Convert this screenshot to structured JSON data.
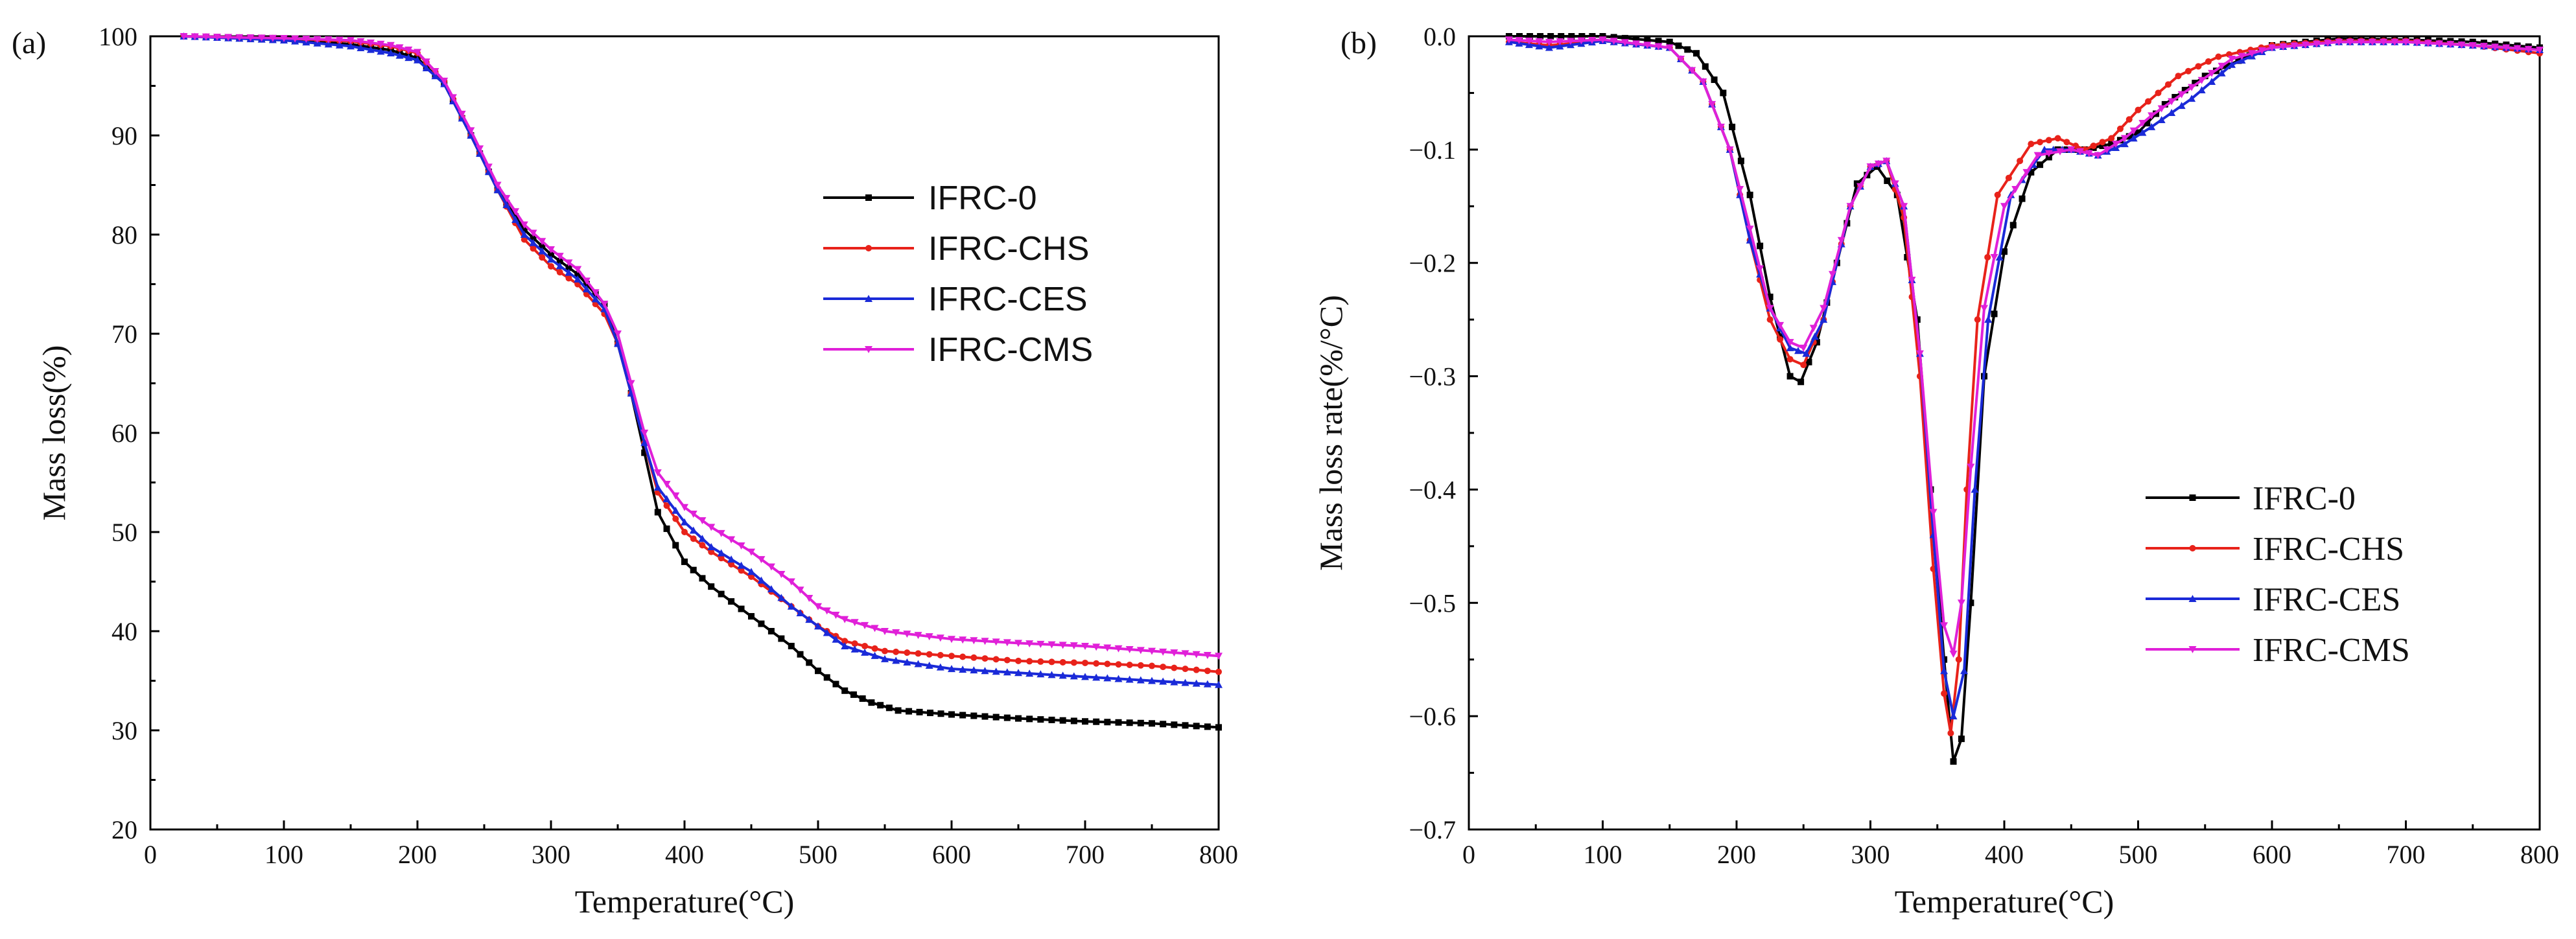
{
  "chart_data": [
    {
      "type": "line",
      "panel_tag": "(a)",
      "title": "",
      "xlabel": "Temperature(°C)",
      "ylabel": "Mass loss(%)",
      "xlim": [
        0,
        800
      ],
      "ylim": [
        20,
        100
      ],
      "x_ticks": [
        0,
        100,
        200,
        300,
        400,
        500,
        600,
        700,
        800
      ],
      "y_ticks": [
        20,
        30,
        40,
        50,
        60,
        70,
        80,
        90,
        100
      ],
      "grid": false,
      "legend_position": "center-right",
      "series": [
        {
          "name": "IFRC-0",
          "color": "#000000",
          "marker": "square",
          "points": [
            [
              25,
              100
            ],
            [
              100,
              99.7
            ],
            [
              150,
              99.2
            ],
            [
              180,
              98.6
            ],
            [
              200,
              97.8
            ],
            [
              220,
              95.2
            ],
            [
              240,
              90
            ],
            [
              260,
              84.5
            ],
            [
              280,
              80.5
            ],
            [
              300,
              78
            ],
            [
              320,
              76
            ],
            [
              340,
              73
            ],
            [
              350,
              69
            ],
            [
              360,
              64
            ],
            [
              370,
              58
            ],
            [
              380,
              52
            ],
            [
              400,
              47
            ],
            [
              420,
              44.5
            ],
            [
              450,
              41.5
            ],
            [
              480,
              38.5
            ],
            [
              500,
              36
            ],
            [
              520,
              34
            ],
            [
              540,
              32.8
            ],
            [
              560,
              32
            ],
            [
              600,
              31.6
            ],
            [
              650,
              31.2
            ],
            [
              700,
              30.9
            ],
            [
              750,
              30.7
            ],
            [
              800,
              30.3
            ]
          ]
        },
        {
          "name": "IFRC-CHS",
          "color": "#e8221a",
          "marker": "circle",
          "points": [
            [
              25,
              100
            ],
            [
              100,
              99.8
            ],
            [
              150,
              99.5
            ],
            [
              180,
              99
            ],
            [
              200,
              98.3
            ],
            [
              220,
              95.5
            ],
            [
              240,
              90
            ],
            [
              260,
              84.5
            ],
            [
              280,
              79.5
            ],
            [
              300,
              76.8
            ],
            [
              320,
              75
            ],
            [
              340,
              72
            ],
            [
              350,
              69
            ],
            [
              360,
              64
            ],
            [
              370,
              59
            ],
            [
              380,
              54
            ],
            [
              400,
              50
            ],
            [
              420,
              48
            ],
            [
              450,
              45.5
            ],
            [
              480,
              42.5
            ],
            [
              500,
              40.5
            ],
            [
              520,
              39
            ],
            [
              550,
              38
            ],
            [
              600,
              37.5
            ],
            [
              650,
              37
            ],
            [
              700,
              36.8
            ],
            [
              750,
              36.5
            ],
            [
              800,
              35.9
            ]
          ]
        },
        {
          "name": "IFRC-CES",
          "color": "#1a2ad8",
          "marker": "triangle",
          "points": [
            [
              25,
              100
            ],
            [
              100,
              99.6
            ],
            [
              150,
              99
            ],
            [
              180,
              98.3
            ],
            [
              200,
              97.6
            ],
            [
              220,
              95.2
            ],
            [
              240,
              90
            ],
            [
              260,
              84.5
            ],
            [
              280,
              80
            ],
            [
              300,
              77.5
            ],
            [
              320,
              75.5
            ],
            [
              340,
              72.5
            ],
            [
              350,
              69
            ],
            [
              360,
              64
            ],
            [
              370,
              59
            ],
            [
              380,
              54.5
            ],
            [
              400,
              51
            ],
            [
              420,
              48.5
            ],
            [
              450,
              46
            ],
            [
              480,
              42.5
            ],
            [
              500,
              40.5
            ],
            [
              520,
              38.5
            ],
            [
              550,
              37.2
            ],
            [
              600,
              36.2
            ],
            [
              650,
              35.8
            ],
            [
              700,
              35.4
            ],
            [
              750,
              35
            ],
            [
              800,
              34.6
            ]
          ]
        },
        {
          "name": "IFRC-CMS",
          "color": "#e020d8",
          "marker": "triangle-down",
          "points": [
            [
              25,
              100
            ],
            [
              100,
              99.8
            ],
            [
              150,
              99.6
            ],
            [
              180,
              99.1
            ],
            [
              200,
              98.4
            ],
            [
              220,
              95.5
            ],
            [
              240,
              90.5
            ],
            [
              260,
              85
            ],
            [
              280,
              81
            ],
            [
              300,
              78.5
            ],
            [
              320,
              76.5
            ],
            [
              340,
              73
            ],
            [
              350,
              70
            ],
            [
              360,
              65
            ],
            [
              370,
              60
            ],
            [
              380,
              56
            ],
            [
              400,
              52.5
            ],
            [
              420,
              50.5
            ],
            [
              450,
              48
            ],
            [
              480,
              45
            ],
            [
              500,
              42.5
            ],
            [
              520,
              41.2
            ],
            [
              550,
              40
            ],
            [
              600,
              39.2
            ],
            [
              650,
              38.8
            ],
            [
              700,
              38.5
            ],
            [
              750,
              38
            ],
            [
              800,
              37.5
            ]
          ]
        }
      ]
    },
    {
      "type": "line",
      "panel_tag": "(b)",
      "title": "",
      "xlabel": "Temperature(°C)",
      "ylabel": "Mass loss rate(%/°C)",
      "xlim": [
        0,
        800
      ],
      "ylim": [
        -0.7,
        0.0
      ],
      "x_ticks": [
        0,
        100,
        200,
        300,
        400,
        500,
        600,
        700,
        800
      ],
      "y_ticks": [
        0.0,
        -0.1,
        -0.2,
        -0.3,
        -0.4,
        -0.5,
        -0.6,
        -0.7
      ],
      "grid": false,
      "legend_position": "lower-right",
      "series": [
        {
          "name": "IFRC-0",
          "color": "#000000",
          "marker": "square",
          "points": [
            [
              30,
              0
            ],
            [
              100,
              0
            ],
            [
              150,
              -0.005
            ],
            [
              170,
              -0.015
            ],
            [
              190,
              -0.05
            ],
            [
              210,
              -0.14
            ],
            [
              225,
              -0.23
            ],
            [
              240,
              -0.3
            ],
            [
              248,
              -0.305
            ],
            [
              260,
              -0.27
            ],
            [
              275,
              -0.2
            ],
            [
              290,
              -0.13
            ],
            [
              305,
              -0.115
            ],
            [
              320,
              -0.14
            ],
            [
              335,
              -0.25
            ],
            [
              345,
              -0.4
            ],
            [
              355,
              -0.55
            ],
            [
              362,
              -0.64
            ],
            [
              368,
              -0.62
            ],
            [
              375,
              -0.5
            ],
            [
              385,
              -0.3
            ],
            [
              400,
              -0.19
            ],
            [
              420,
              -0.12
            ],
            [
              440,
              -0.1
            ],
            [
              460,
              -0.1
            ],
            [
              480,
              -0.095
            ],
            [
              500,
              -0.085
            ],
            [
              520,
              -0.06
            ],
            [
              550,
              -0.035
            ],
            [
              600,
              -0.008
            ],
            [
              650,
              -0.002
            ],
            [
              700,
              -0.003
            ],
            [
              750,
              -0.005
            ],
            [
              800,
              -0.01
            ]
          ]
        },
        {
          "name": "IFRC-CHS",
          "color": "#e8221a",
          "marker": "circle",
          "points": [
            [
              30,
              -0.005
            ],
            [
              60,
              -0.008
            ],
            [
              100,
              -0.004
            ],
            [
              150,
              -0.01
            ],
            [
              175,
              -0.04
            ],
            [
              195,
              -0.1
            ],
            [
              210,
              -0.18
            ],
            [
              225,
              -0.25
            ],
            [
              240,
              -0.285
            ],
            [
              250,
              -0.29
            ],
            [
              265,
              -0.25
            ],
            [
              285,
              -0.15
            ],
            [
              300,
              -0.115
            ],
            [
              312,
              -0.11
            ],
            [
              325,
              -0.16
            ],
            [
              337,
              -0.3
            ],
            [
              347,
              -0.47
            ],
            [
              355,
              -0.58
            ],
            [
              360,
              -0.615
            ],
            [
              366,
              -0.55
            ],
            [
              372,
              -0.4
            ],
            [
              380,
              -0.25
            ],
            [
              395,
              -0.14
            ],
            [
              420,
              -0.095
            ],
            [
              440,
              -0.09
            ],
            [
              460,
              -0.1
            ],
            [
              480,
              -0.09
            ],
            [
              500,
              -0.065
            ],
            [
              530,
              -0.035
            ],
            [
              560,
              -0.018
            ],
            [
              600,
              -0.008
            ],
            [
              650,
              -0.004
            ],
            [
              700,
              -0.004
            ],
            [
              750,
              -0.008
            ],
            [
              800,
              -0.015
            ]
          ]
        },
        {
          "name": "IFRC-CES",
          "color": "#1a2ad8",
          "marker": "triangle",
          "points": [
            [
              30,
              -0.005
            ],
            [
              60,
              -0.01
            ],
            [
              100,
              -0.004
            ],
            [
              150,
              -0.01
            ],
            [
              175,
              -0.04
            ],
            [
              195,
              -0.1
            ],
            [
              210,
              -0.18
            ],
            [
              225,
              -0.24
            ],
            [
              240,
              -0.275
            ],
            [
              252,
              -0.28
            ],
            [
              265,
              -0.25
            ],
            [
              285,
              -0.15
            ],
            [
              300,
              -0.115
            ],
            [
              312,
              -0.11
            ],
            [
              325,
              -0.15
            ],
            [
              337,
              -0.28
            ],
            [
              347,
              -0.44
            ],
            [
              355,
              -0.56
            ],
            [
              362,
              -0.6
            ],
            [
              370,
              -0.56
            ],
            [
              378,
              -0.4
            ],
            [
              388,
              -0.25
            ],
            [
              405,
              -0.14
            ],
            [
              430,
              -0.1
            ],
            [
              450,
              -0.1
            ],
            [
              470,
              -0.105
            ],
            [
              490,
              -0.095
            ],
            [
              510,
              -0.08
            ],
            [
              540,
              -0.055
            ],
            [
              570,
              -0.025
            ],
            [
              600,
              -0.01
            ],
            [
              650,
              -0.005
            ],
            [
              700,
              -0.005
            ],
            [
              750,
              -0.008
            ],
            [
              800,
              -0.012
            ]
          ]
        },
        {
          "name": "IFRC-CMS",
          "color": "#e020d8",
          "marker": "triangle-down",
          "points": [
            [
              30,
              -0.003
            ],
            [
              60,
              -0.005
            ],
            [
              100,
              -0.003
            ],
            [
              150,
              -0.01
            ],
            [
              175,
              -0.04
            ],
            [
              195,
              -0.1
            ],
            [
              210,
              -0.17
            ],
            [
              225,
              -0.24
            ],
            [
              240,
              -0.27
            ],
            [
              250,
              -0.275
            ],
            [
              265,
              -0.24
            ],
            [
              285,
              -0.15
            ],
            [
              300,
              -0.115
            ],
            [
              312,
              -0.11
            ],
            [
              325,
              -0.15
            ],
            [
              337,
              -0.28
            ],
            [
              347,
              -0.42
            ],
            [
              355,
              -0.52
            ],
            [
              362,
              -0.545
            ],
            [
              368,
              -0.5
            ],
            [
              375,
              -0.38
            ],
            [
              385,
              -0.24
            ],
            [
              400,
              -0.15
            ],
            [
              425,
              -0.105
            ],
            [
              450,
              -0.1
            ],
            [
              470,
              -0.105
            ],
            [
              490,
              -0.09
            ],
            [
              510,
              -0.07
            ],
            [
              540,
              -0.045
            ],
            [
              570,
              -0.02
            ],
            [
              600,
              -0.01
            ],
            [
              650,
              -0.005
            ],
            [
              700,
              -0.005
            ],
            [
              750,
              -0.008
            ],
            [
              800,
              -0.012
            ]
          ]
        }
      ]
    }
  ]
}
